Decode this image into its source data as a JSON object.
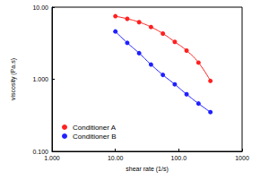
{
  "chart_data": {
    "type": "line",
    "x_label": "shear rate (1/s)",
    "y_label": "viscosity (Pa.s)",
    "log": true,
    "grid": false,
    "legend": "lower left",
    "marker": "circle",
    "line_style": "solid",
    "x": [
      10,
      15.4,
      23.7,
      36.5,
      56.2,
      86.6,
      133,
      205,
      316
    ],
    "series": [
      {
        "name": "Conditioner A",
        "color": "#ff2020",
        "values": [
          7.5,
          6.9,
          6.2,
          5.3,
          4.3,
          3.3,
          2.5,
          1.7,
          0.95
        ]
      },
      {
        "name": "Conditioner B",
        "color": "#2020ff",
        "values": [
          4.6,
          3.2,
          2.3,
          1.6,
          1.15,
          0.85,
          0.62,
          0.46,
          0.35
        ]
      }
    ],
    "xlim": [
      1,
      1000
    ],
    "xticks": [
      {
        "value": 1,
        "label": "1.000"
      },
      {
        "value": 10,
        "label": "10.00"
      },
      {
        "value": 100,
        "label": "100.0"
      },
      1000
    ],
    "ylim": [
      0.1,
      10
    ],
    "yticks": [
      {
        "value": 0.1,
        "label": "0.100"
      },
      {
        "value": 1,
        "label": "1.000"
      },
      {
        "value": 10,
        "label": "10.00"
      }
    ]
  }
}
